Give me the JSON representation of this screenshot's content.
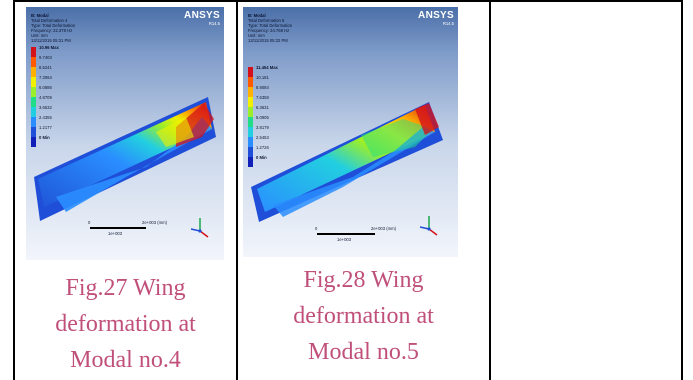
{
  "panels": [
    {
      "header": [
        "B: Modal",
        "Total Deformation 4",
        "Type: Total Deformation",
        "Frequency: 22.378 Hz",
        "Unit: mm",
        "13/11/2015 05:31 PM"
      ],
      "brand": "ANSYS",
      "brand_version": "R14.5",
      "legend": [
        "10.96 Max",
        "9.7403",
        "8.5241",
        "7.3064",
        "6.0886",
        "4.8709",
        "3.6532",
        "2.4355",
        "1.2177",
        "0 Min"
      ],
      "scale_zero": "0",
      "scale_end": "2e+003 (mm)",
      "scale_mid": "1e+003",
      "caption": [
        "Fig.27 Wing",
        "deformation at",
        "Modal no.4"
      ]
    },
    {
      "header": [
        "B: Modal",
        "Total Deformation 5",
        "Type: Total Deformation",
        "Frequency: 24.768 Hz",
        "Unit: mm",
        "13/11/2015 05:32 PM"
      ],
      "brand": "ANSYS",
      "brand_version": "R14.5",
      "legend": [
        "11.454 Max",
        "10.181",
        "8.9084",
        "7.6358",
        "6.3631",
        "5.0905",
        "3.8179",
        "2.5453",
        "1.2726",
        "0 Min"
      ],
      "scale_zero": "0",
      "scale_end": "2e+003 (mm)",
      "scale_mid": "1e+003",
      "caption": [
        "Fig.28 Wing",
        "deformation at",
        "Modal no.5"
      ]
    }
  ],
  "legend_colors": [
    "#d4111a",
    "#ff5a00",
    "#ffb000",
    "#f0f000",
    "#9aee2a",
    "#22dd88",
    "#22cfe0",
    "#2a8eff",
    "#1f4fd8",
    "#1020b8"
  ]
}
